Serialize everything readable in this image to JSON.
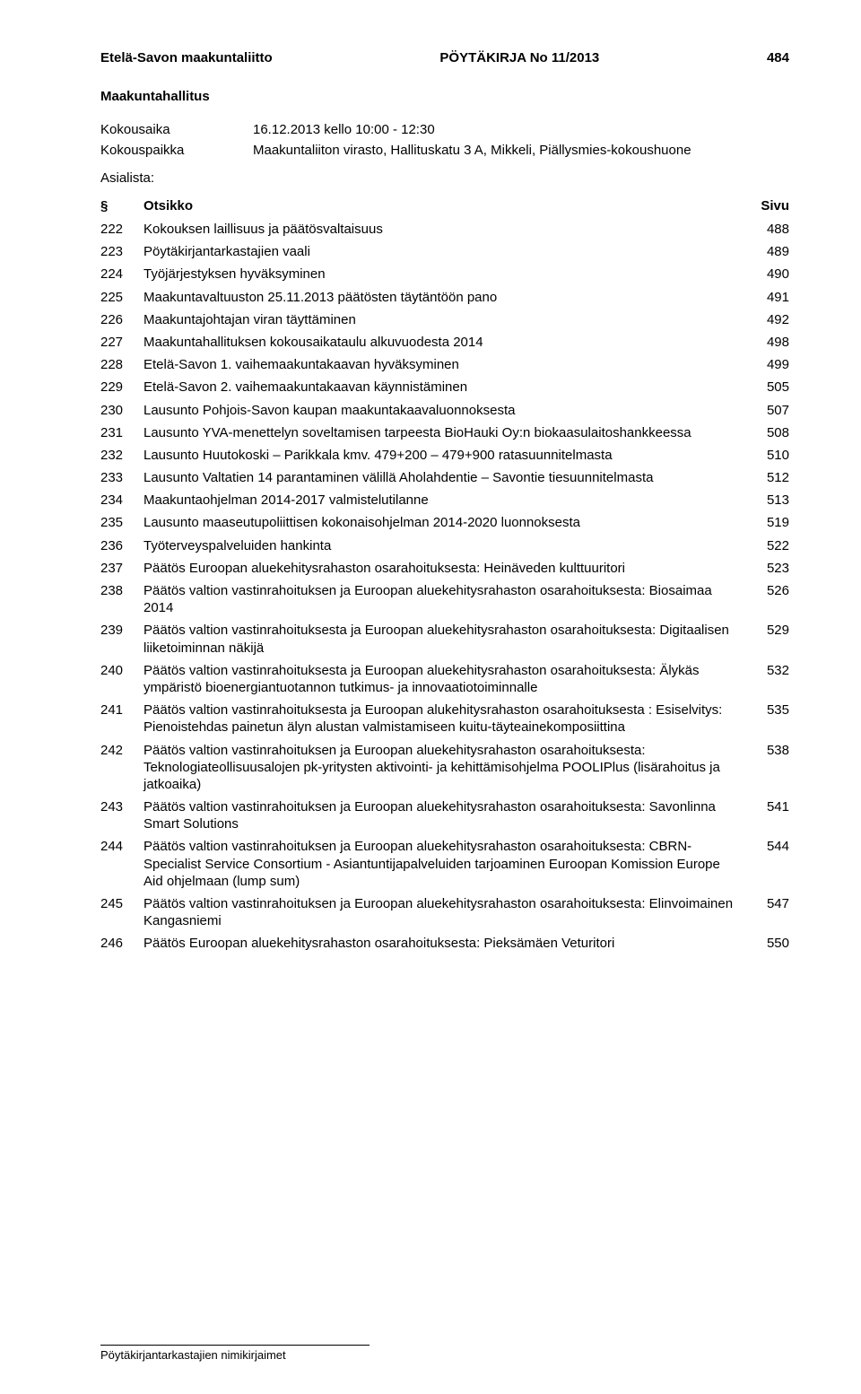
{
  "header": {
    "organization": "Etelä-Savon maakuntaliitto",
    "doc_label": "PÖYTÄKIRJA No 11/2013",
    "page_number": "484"
  },
  "meeting": {
    "body": "Maakuntahallitus",
    "time_label": "Kokousaika",
    "time_value": "16.12.2013 kello 10:00 - 12:30",
    "place_label": "Kokouspaikka",
    "place_value": "Maakuntaliiton virasto, Hallituskatu 3 A, Mikkeli, Piällysmies-kokoushuone",
    "agenda_label": "Asialista:"
  },
  "toc_header": {
    "section": "§",
    "title": "Otsikko",
    "page": "Sivu"
  },
  "toc": [
    {
      "section": "222",
      "title": "Kokouksen laillisuus ja päätösvaltaisuus",
      "page": "488"
    },
    {
      "section": "223",
      "title": "Pöytäkirjantarkastajien vaali",
      "page": "489"
    },
    {
      "section": "224",
      "title": "Työjärjestyksen hyväksyminen",
      "page": "490"
    },
    {
      "section": "225",
      "title": "Maakuntavaltuuston 25.11.2013 päätösten täytäntöön pano",
      "page": "491"
    },
    {
      "section": "226",
      "title": "Maakuntajohtajan viran täyttäminen",
      "page": "492"
    },
    {
      "section": "227",
      "title": "Maakuntahallituksen kokousaikataulu alkuvuodesta 2014",
      "page": "498"
    },
    {
      "section": "228",
      "title": "Etelä-Savon 1. vaihemaakuntakaavan hyväksyminen",
      "page": "499"
    },
    {
      "section": "229",
      "title": "Etelä-Savon 2. vaihemaakuntakaavan käynnistäminen",
      "page": "505"
    },
    {
      "section": "230",
      "title": "Lausunto Pohjois-Savon kaupan maakuntakaavaluonnoksesta",
      "page": "507"
    },
    {
      "section": "231",
      "title": "Lausunto YVA-menettelyn soveltamisen tarpeesta BioHauki Oy:n biokaasulaitoshankkeessa",
      "page": "508"
    },
    {
      "section": "232",
      "title": "Lausunto Huutokoski – Parikkala kmv. 479+200 – 479+900 ratasuunnitelmasta",
      "page": "510"
    },
    {
      "section": "233",
      "title": "Lausunto Valtatien 14 parantaminen välillä Aholahdentie – Savontie tiesuunnitelmasta",
      "page": "512"
    },
    {
      "section": "234",
      "title": "Maakuntaohjelman 2014-2017 valmistelutilanne",
      "page": "513"
    },
    {
      "section": "235",
      "title": "Lausunto maaseutupoliittisen kokonaisohjelman 2014-2020 luonnoksesta",
      "page": "519"
    },
    {
      "section": "236",
      "title": "Työterveyspalveluiden hankinta",
      "page": "522"
    },
    {
      "section": "237",
      "title": "Päätös Euroopan aluekehitysrahaston osarahoituksesta: Heinäveden kulttuuritori",
      "page": "523"
    },
    {
      "section": "238",
      "title": "Päätös valtion vastinrahoituksen ja Euroopan aluekehitysrahaston osarahoituksesta:  Biosaimaa 2014",
      "page": "526"
    },
    {
      "section": "239",
      "title": "Päätös valtion vastinrahoituksesta ja Euroopan aluekehitysrahaston osarahoituksesta: Digitaalisen liiketoiminnan näkijä",
      "page": "529"
    },
    {
      "section": "240",
      "title": "Päätös valtion vastinrahoituksesta ja Euroopan aluekehitysrahaston osarahoituksesta: Älykäs ympäristö bioenergiantuotannon tutkimus- ja innovaatiotoiminnalle",
      "page": "532"
    },
    {
      "section": "241",
      "title": "Päätös valtion vastinrahoituksesta ja Euroopan alukehitysrahaston osarahoituksesta : Esiselvitys: Pienoistehdas painetun älyn alustan valmistamiseen kuitu-täyteainekomposiittina",
      "page": "535"
    },
    {
      "section": "242",
      "title": "Päätös valtion vastinrahoituksen ja Euroopan aluekehitysrahaston osarahoituksesta: Teknologiateollisuusalojen pk-yritysten aktivointi- ja kehittämisohjelma POOLIPlus (lisärahoitus ja jatkoaika)",
      "page": "538"
    },
    {
      "section": "243",
      "title": "Päätös valtion vastinrahoituksen ja Euroopan aluekehitysrahaston osarahoituksesta: Savonlinna Smart Solutions",
      "page": "541"
    },
    {
      "section": "244",
      "title": "Päätös valtion vastinrahoituksen ja Euroopan aluekehitysrahaston osarahoituksesta: CBRN-Specialist Service Consortium - Asiantuntijapalveluiden tarjoaminen Euroopan Komission Europe Aid ohjelmaan (lump sum)",
      "page": "544"
    },
    {
      "section": "245",
      "title": "Päätös valtion vastinrahoituksen ja Euroopan aluekehitysrahaston osarahoituksesta: Elinvoimainen Kangasniemi",
      "page": "547"
    },
    {
      "section": "246",
      "title": "Päätös Euroopan aluekehitysrahaston osarahoituksesta: Pieksämäen Veturitori",
      "page": "550"
    }
  ],
  "footer": {
    "text": "Pöytäkirjantarkastajien nimikirjaimet"
  }
}
